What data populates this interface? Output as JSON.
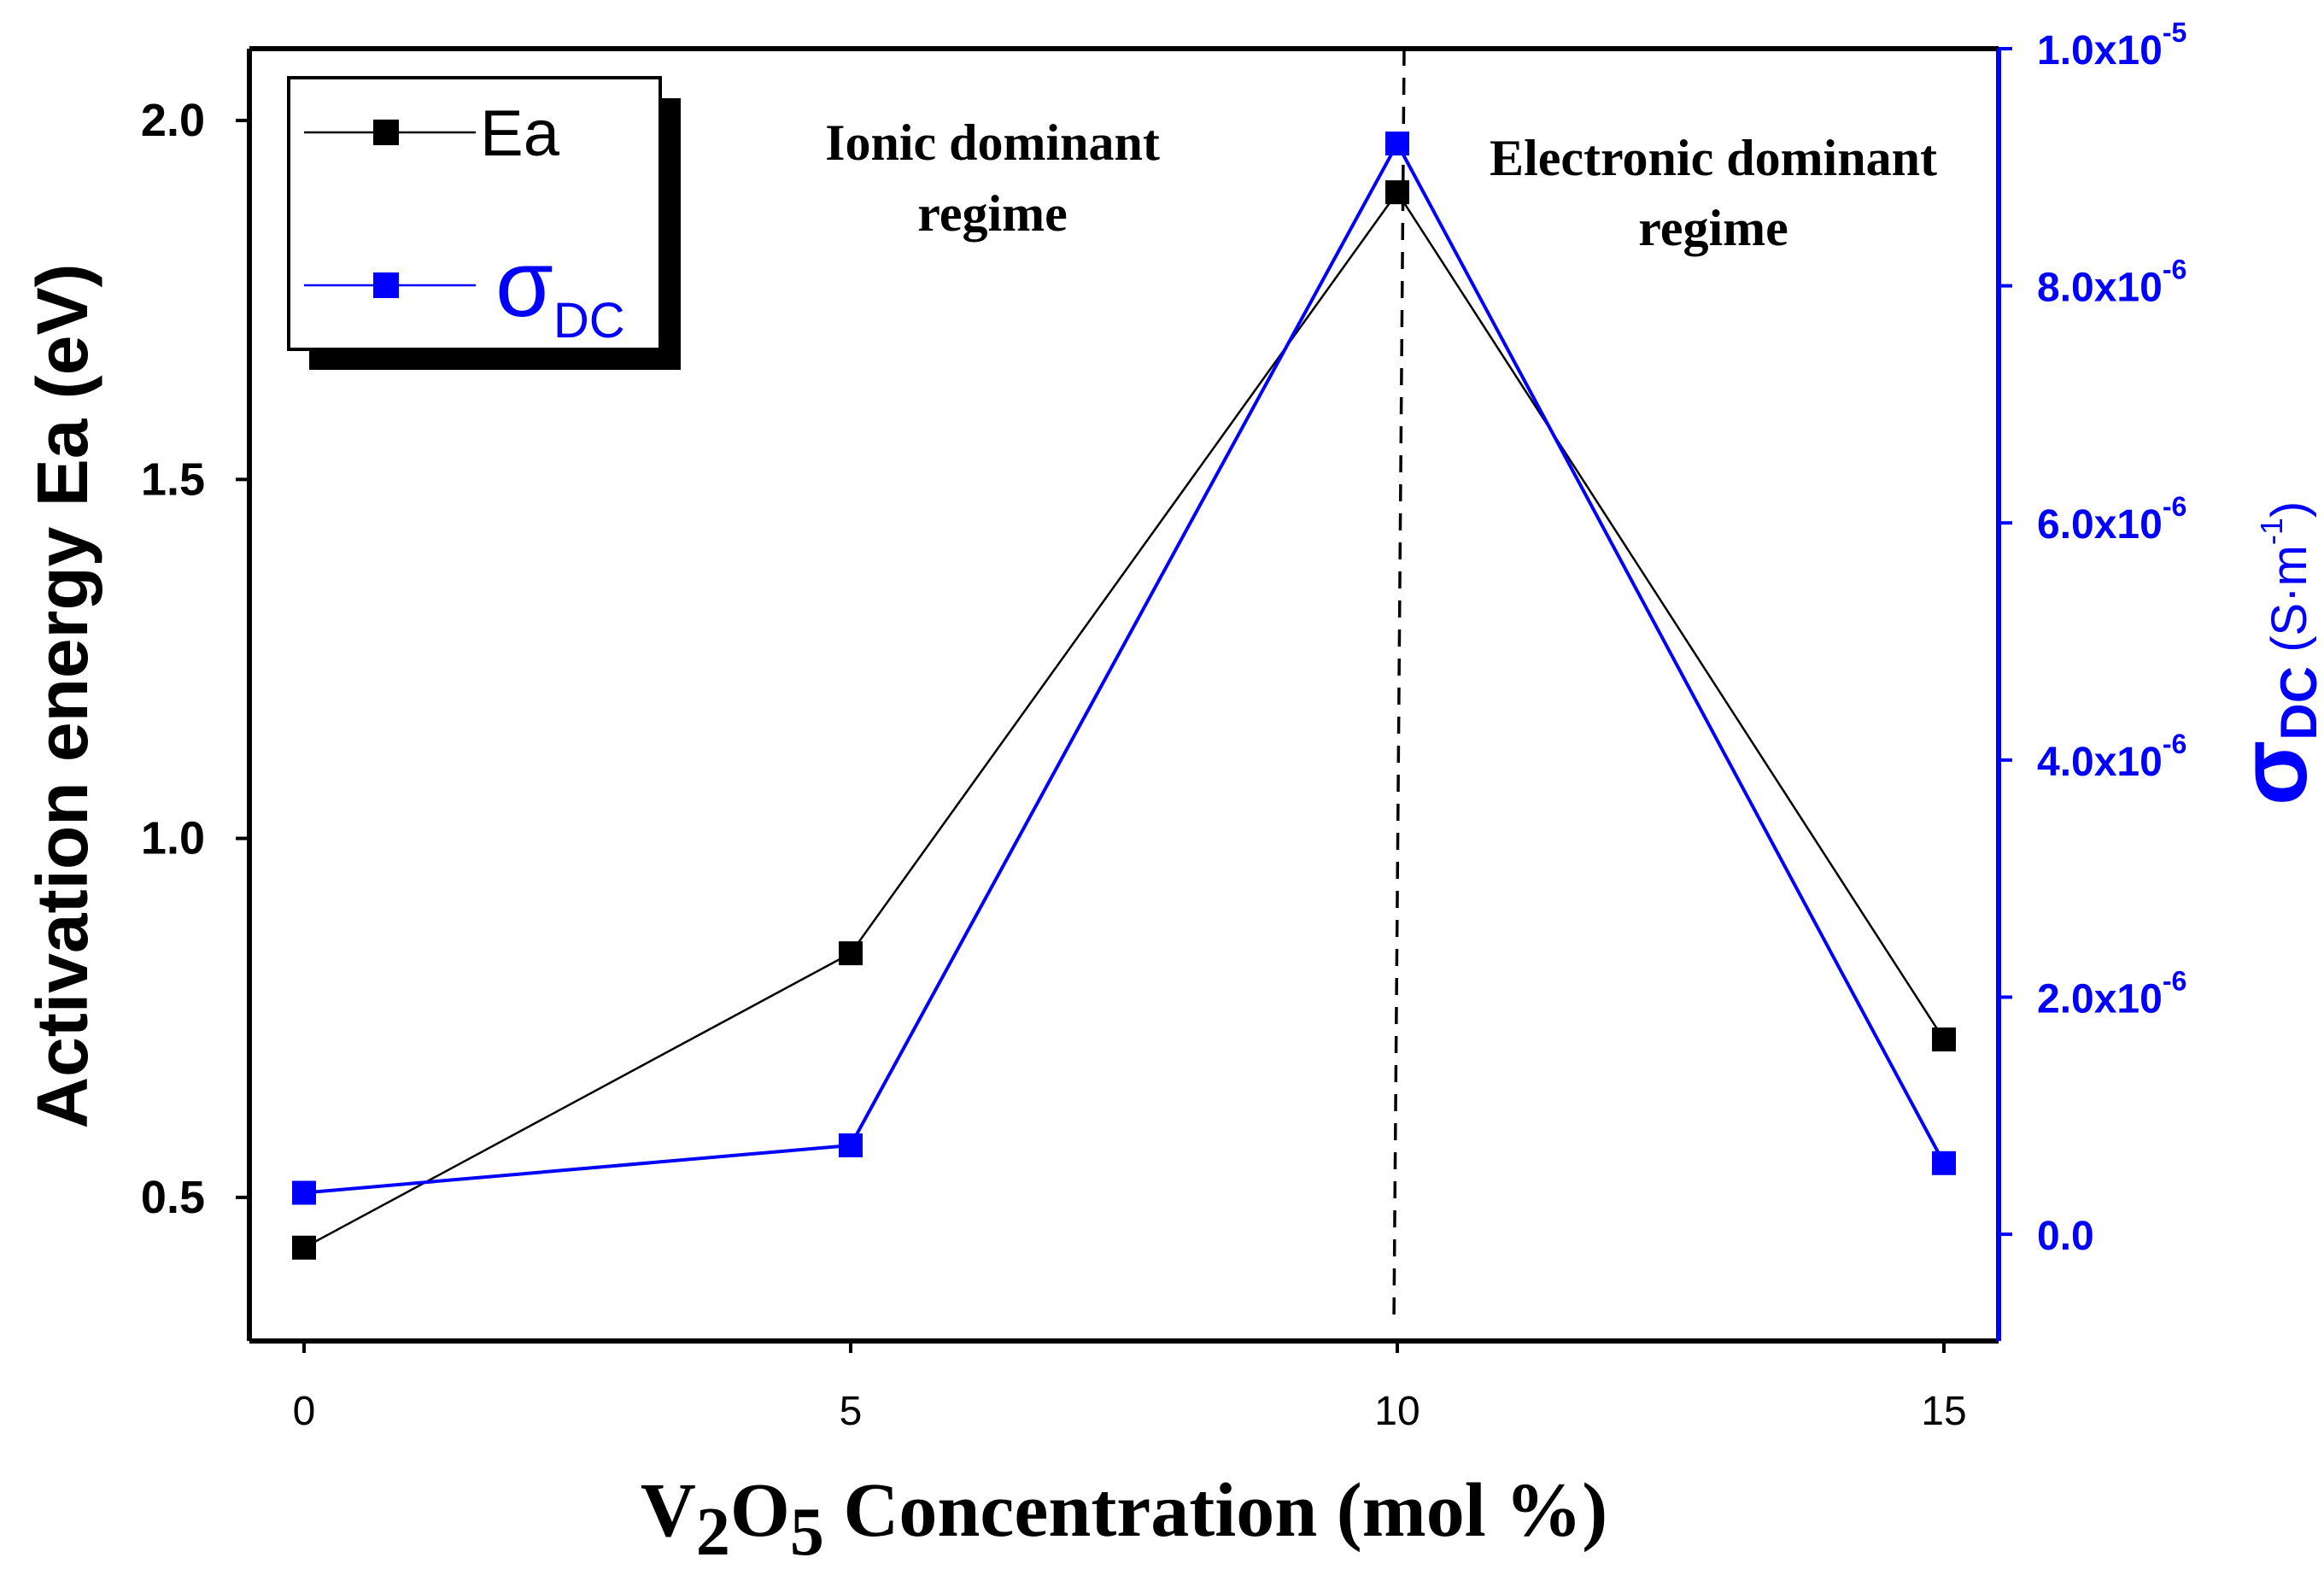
{
  "chart_data": {
    "type": "line",
    "x": [
      0,
      5,
      10,
      15
    ],
    "xlabel": {
      "prefix": "V",
      "sub1": "2",
      "mid": "O",
      "sub2": "5",
      "suffix": " Concentration (mol %)"
    },
    "xticks": [
      "0",
      "5",
      "10",
      "15"
    ],
    "xlim": [
      -0.5,
      15.5
    ],
    "y_left": {
      "label": "Activation energy Ea (eV)",
      "ticks": [
        "0.5",
        "1.0",
        "1.5",
        "2.0"
      ],
      "tick_values": [
        0.5,
        1.0,
        1.5,
        2.0
      ],
      "lim": [
        0.3,
        2.1
      ]
    },
    "y_right": {
      "label": {
        "symbol": "σ",
        "sub": "DC",
        "unit_open": " (S",
        "dot": "·",
        "unit_m": "m",
        "exp": "-1",
        "unit_close": ")"
      },
      "ticks": [
        {
          "mant": "0.0",
          "exp": ""
        },
        {
          "mant": "2.0x10",
          "exp": "-6"
        },
        {
          "mant": "4.0x10",
          "exp": "-6"
        },
        {
          "mant": "6.0x10",
          "exp": "-6"
        },
        {
          "mant": "8.0x10",
          "exp": "-6"
        },
        {
          "mant": "1.0x10",
          "exp": "-5"
        }
      ],
      "tick_values": [
        0,
        2e-06,
        4e-06,
        6e-06,
        8e-06,
        1e-05
      ],
      "lim": [
        -9e-07,
        1e-05
      ],
      "color": "#0000ff"
    },
    "series": [
      {
        "name": "Ea",
        "axis": "left",
        "color": "#000000",
        "values": [
          0.43,
          0.84,
          1.9,
          0.72
        ]
      },
      {
        "name": "σDC",
        "axis": "right",
        "color": "#0000ff",
        "values": [
          3.5e-07,
          7.5e-07,
          9.2e-06,
          6e-07
        ]
      }
    ],
    "legend": {
      "position": "top-left",
      "items": [
        {
          "text": "Ea",
          "sub": "",
          "color": "#000000"
        },
        {
          "text": "σ",
          "sub": "DC",
          "color": "#0000ff"
        }
      ]
    },
    "annotations": {
      "left_region": {
        "line1": "Ionic dominant",
        "line2": "regime"
      },
      "right_region": {
        "line1": "Electronic dominant",
        "line2": "regime"
      },
      "divider_x": 10
    }
  }
}
